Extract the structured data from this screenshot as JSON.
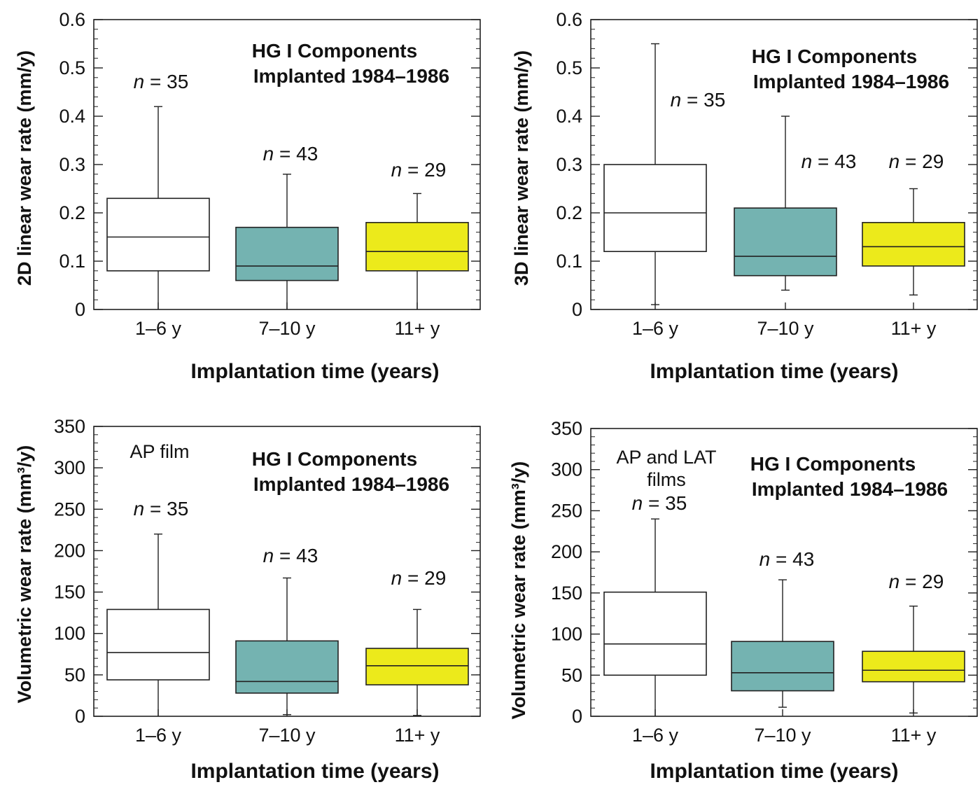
{
  "colors": {
    "white_box": "#ffffff",
    "teal_box": "#74b3b1",
    "yellow_box": "#ecea1b",
    "line": "#222222"
  },
  "chart_data": [
    {
      "type": "box",
      "ylabel": "2D linear wear rate (mm/y)",
      "xlabel": "Implantation time (years)",
      "note_line1": "HG I Components",
      "note_line2": "Implanted 1984–1986",
      "extra_label": "",
      "ylim": [
        0,
        0.6
      ],
      "yticks": [
        "0",
        "0.1",
        "0.2",
        "0.3",
        "0.4",
        "0.5",
        "0.6"
      ],
      "minor_step": 0.02,
      "groups": [
        {
          "category": "1–6 y",
          "n_label": "n = 35",
          "min": 0.0,
          "q1": 0.08,
          "median": 0.15,
          "q3": 0.23,
          "max": 0.42,
          "color": "white"
        },
        {
          "category": "7–10 y",
          "n_label": "n = 43",
          "min": 0.0,
          "q1": 0.06,
          "median": 0.09,
          "q3": 0.17,
          "max": 0.28,
          "color": "teal"
        },
        {
          "category": "11+ y",
          "n_label": "n = 29",
          "min": 0.0,
          "q1": 0.08,
          "median": 0.12,
          "q3": 0.18,
          "max": 0.24,
          "color": "yellow"
        }
      ]
    },
    {
      "type": "box",
      "ylabel": "3D linear wear rate (mm/y)",
      "xlabel": "Implantation time (years)",
      "note_line1": "HG I Components",
      "note_line2": "Implanted 1984–1986",
      "extra_label": "",
      "ylim": [
        0,
        0.6
      ],
      "yticks": [
        "0",
        "0.1",
        "0.2",
        "0.3",
        "0.4",
        "0.5",
        "0.6"
      ],
      "minor_step": 0.02,
      "groups": [
        {
          "category": "1–6 y",
          "n_label": "n = 35",
          "min": 0.01,
          "q1": 0.12,
          "median": 0.2,
          "q3": 0.3,
          "max": 0.55,
          "color": "white"
        },
        {
          "category": "7–10 y",
          "n_label": "n = 43",
          "min": 0.04,
          "q1": 0.07,
          "median": 0.11,
          "q3": 0.21,
          "max": 0.4,
          "color": "teal"
        },
        {
          "category": "11+ y",
          "n_label": "n = 29",
          "min": 0.03,
          "q1": 0.09,
          "median": 0.13,
          "q3": 0.18,
          "max": 0.25,
          "color": "yellow"
        }
      ]
    },
    {
      "type": "box",
      "ylabel": "Volumetric wear rate (mm³/y)",
      "xlabel": "Implantation time (years)",
      "note_line1": "HG I Components",
      "note_line2": "Implanted 1984–1986",
      "extra_label": "AP film",
      "ylim": [
        0,
        350
      ],
      "yticks": [
        "0",
        "50",
        "100",
        "150",
        "200",
        "250",
        "300",
        "350"
      ],
      "minor_step": 10,
      "groups": [
        {
          "category": "1–6 y",
          "n_label": "n = 35",
          "min": 0,
          "q1": 44,
          "median": 77,
          "q3": 129,
          "max": 220,
          "color": "white"
        },
        {
          "category": "7–10 y",
          "n_label": "n = 43",
          "min": 2,
          "q1": 28,
          "median": 42,
          "q3": 91,
          "max": 167,
          "color": "teal"
        },
        {
          "category": "11+ y",
          "n_label": "n = 29",
          "min": 1,
          "q1": 38,
          "median": 61,
          "q3": 82,
          "max": 129,
          "color": "yellow"
        }
      ]
    },
    {
      "type": "box",
      "ylabel": "Volumetric wear rate (mm³/y)",
      "xlabel": "Implantation time (years)",
      "note_line1": "HG I Components",
      "note_line2": "Implanted 1984–1986",
      "extra_label": "AP and LAT",
      "extra_label2": "films",
      "ylim": [
        0,
        350
      ],
      "yticks": [
        "0",
        "50",
        "100",
        "150",
        "200",
        "250",
        "300",
        "350"
      ],
      "minor_step": 10,
      "groups": [
        {
          "category": "1–6 y",
          "n_label": "n = 35",
          "min": 0,
          "q1": 50,
          "median": 88,
          "q3": 151,
          "max": 240,
          "color": "white"
        },
        {
          "category": "7–10 y",
          "n_label": "n = 43",
          "min": 11,
          "q1": 31,
          "median": 53,
          "q3": 91,
          "max": 166,
          "color": "teal"
        },
        {
          "category": "11+ y",
          "n_label": "n = 29",
          "min": 4,
          "q1": 42,
          "median": 56,
          "q3": 79,
          "max": 134,
          "color": "yellow"
        }
      ]
    }
  ]
}
